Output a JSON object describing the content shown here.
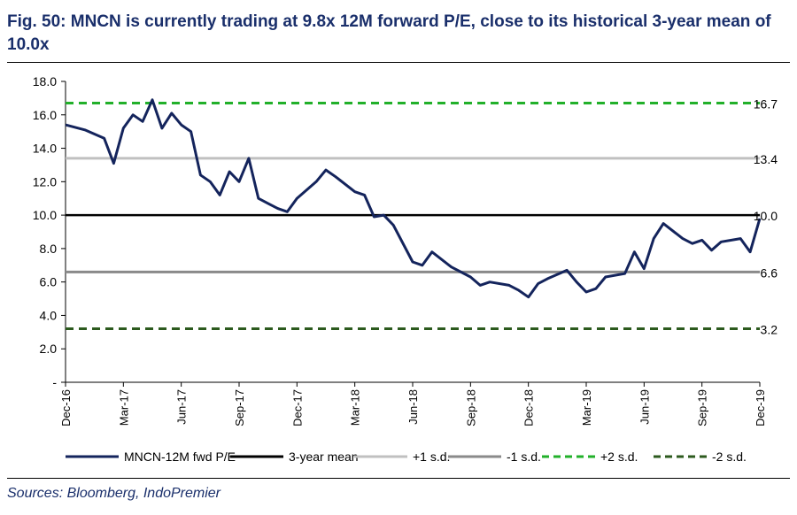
{
  "figure": {
    "title": "Fig. 50: MNCN is currently trading at 9.8x 12M forward P/E, close to its historical 3-year mean of 10.0x",
    "source": "Sources: Bloomberg, IndoPremier"
  },
  "chart_data": {
    "type": "line",
    "title": "Fig. 50: MNCN is currently trading at 9.8x 12M forward P/E, close to its historical 3-year mean of 10.0x",
    "xlabel": "",
    "ylabel": "",
    "ylim": [
      0,
      18
    ],
    "y_ticks": [
      "-",
      "2.0",
      "4.0",
      "6.0",
      "8.0",
      "10.0",
      "12.0",
      "14.0",
      "16.0",
      "18.0"
    ],
    "x_ticks": [
      "Dec-16",
      "Mar-17",
      "Jun-17",
      "Sep-17",
      "Dec-17",
      "Mar-18",
      "Jun-18",
      "Sep-18",
      "Dec-18",
      "Mar-19",
      "Jun-19",
      "Sep-19",
      "Dec-19"
    ],
    "grid": false,
    "legend_position": "bottom",
    "series": [
      {
        "name": "MNCN-12M fwd P/E",
        "color": "#14245c",
        "x": [
          "Dec-16",
          "Jan-17",
          "Feb-17",
          "Feb-17",
          "Mar-17",
          "Mar-17",
          "Apr-17",
          "Apr-17",
          "May-17",
          "May-17",
          "Jun-17",
          "Jun-17",
          "Jul-17",
          "Jul-17",
          "Aug-17",
          "Aug-17",
          "Sep-17",
          "Sep-17",
          "Oct-17",
          "Oct-17",
          "Nov-17",
          "Nov-17",
          "Dec-17",
          "Jan-18",
          "Jan-18",
          "Feb-18",
          "Mar-18",
          "Mar-18",
          "Apr-18",
          "Apr-18",
          "May-18",
          "Jun-18",
          "Jun-18",
          "Jul-18",
          "Aug-18",
          "Sep-18",
          "Sep-18",
          "Oct-18",
          "Nov-18",
          "Nov-18",
          "Dec-18",
          "Dec-18",
          "Jan-19",
          "Feb-19",
          "Feb-19",
          "Mar-19",
          "Mar-19",
          "Apr-19",
          "May-19",
          "May-19",
          "Jun-19",
          "Jun-19",
          "Jul-19",
          "Aug-19",
          "Aug-19",
          "Sep-19",
          "Sep-19",
          "Oct-19",
          "Nov-19",
          "Nov-19",
          "Dec-19"
        ],
        "values": [
          15.4,
          15.1,
          14.6,
          13.1,
          15.2,
          16.0,
          15.6,
          16.9,
          15.2,
          16.1,
          15.4,
          15.0,
          12.4,
          12.0,
          11.2,
          12.6,
          12.0,
          13.4,
          11.0,
          10.7,
          10.4,
          10.2,
          11.0,
          12.0,
          12.7,
          12.3,
          11.4,
          11.2,
          9.9,
          10.0,
          9.4,
          7.2,
          7.0,
          7.8,
          6.9,
          6.3,
          5.8,
          6.0,
          5.8,
          5.5,
          5.1,
          5.9,
          6.2,
          6.7,
          6.0,
          5.4,
          5.6,
          6.3,
          6.5,
          7.8,
          6.8,
          8.6,
          9.5,
          8.6,
          8.3,
          8.5,
          7.9,
          8.4,
          8.6,
          7.8,
          9.8
        ]
      },
      {
        "name": "3-year mean",
        "color": "#000000",
        "values": [
          10.0
        ]
      },
      {
        "name": "+1 s.d.",
        "color": "#c0c0c0",
        "values": [
          13.4
        ]
      },
      {
        "name": "-1 s.d.",
        "color": "#8a8a8a",
        "values": [
          6.6
        ]
      },
      {
        "name": "+2 s.d.",
        "color": "#22b02a",
        "values": [
          16.7
        ]
      },
      {
        "name": "-2 s.d.",
        "color": "#2c5a1e",
        "values": [
          3.2
        ]
      }
    ],
    "reference_labels": [
      "16.7",
      "13.4",
      "10.0",
      "6.6",
      "3.2"
    ]
  }
}
